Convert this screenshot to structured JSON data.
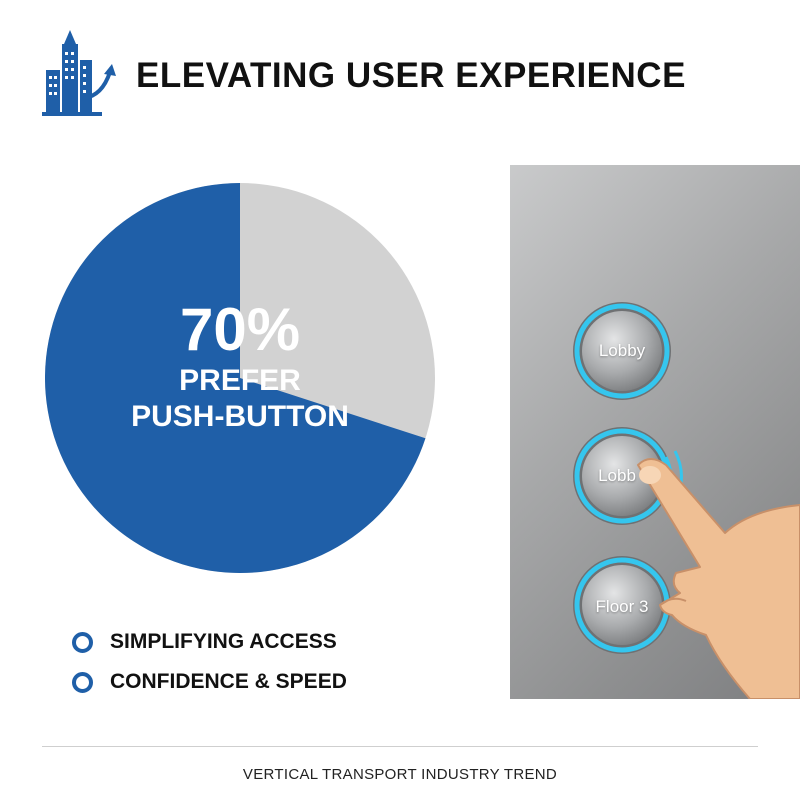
{
  "header": {
    "title": "ELEVATING USER EXPERIENCE",
    "logo_icon": "building-growth-icon"
  },
  "stat": {
    "percent_label": "70%",
    "line1": "PREFER",
    "line2": "PUSH-BUTTON",
    "share": 0.7,
    "colors": {
      "primary": "#1f5fa8",
      "remainder": "#d2d2d2"
    }
  },
  "bullets": [
    {
      "text": "SIMPLIFYING ACCESS",
      "icon": "circle-bullet-icon"
    },
    {
      "text": "CONFIDENCE & SPEED",
      "icon": "circle-bullet-icon"
    }
  ],
  "elevator_panel": {
    "buttons": [
      {
        "label": "Lobby"
      },
      {
        "label": "Lobb"
      },
      {
        "label": "Floor 3"
      }
    ],
    "glow_color": "#35c6ee",
    "hand_icon": "pointing-hand-icon"
  },
  "footer": {
    "text": "VERTICAL TRANSPORT INDUSTRY TREND"
  }
}
